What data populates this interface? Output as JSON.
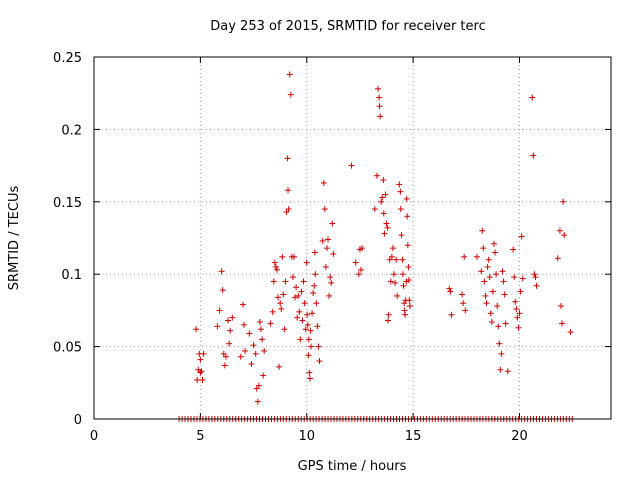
{
  "chart_data": {
    "type": "scatter",
    "title": "Day 253 of 2015, SRMTID for receiver terc",
    "xlabel": "GPS time / hours",
    "ylabel": "SRMTID / TECUs",
    "xlim": [
      0,
      24.3
    ],
    "ylim": [
      0,
      0.25
    ],
    "grid": true,
    "x_ticks": [
      0,
      5,
      10,
      15,
      20
    ],
    "x_tick_labels": [
      "0",
      "5",
      "10",
      "15",
      "20"
    ],
    "y_ticks": [
      0,
      0.05,
      0.1,
      0.15,
      0.2,
      0.25
    ],
    "y_tick_labels": [
      "0",
      "0.05",
      "0.1",
      "0.15",
      "0.2",
      "0.25"
    ],
    "marker": "plus",
    "color": "#cc0000",
    "zero_band": {
      "y": 0,
      "from_x": 4.0,
      "to_x": 22.5
    },
    "series": [
      {
        "name": "SRMTID",
        "points": [
          [
            4.8,
            0.062
          ],
          [
            4.85,
            0.027
          ],
          [
            4.9,
            0.034
          ],
          [
            4.95,
            0.045
          ],
          [
            5.0,
            0.041
          ],
          [
            5.0,
            0.032
          ],
          [
            5.05,
            0.033
          ],
          [
            5.1,
            0.027
          ],
          [
            5.15,
            0.045
          ],
          [
            5.8,
            0.064
          ],
          [
            5.9,
            0.075
          ],
          [
            6.0,
            0.102
          ],
          [
            6.05,
            0.089
          ],
          [
            6.1,
            0.045
          ],
          [
            6.15,
            0.037
          ],
          [
            6.2,
            0.043
          ],
          [
            6.3,
            0.068
          ],
          [
            6.35,
            0.052
          ],
          [
            6.4,
            0.061
          ],
          [
            6.5,
            0.07
          ],
          [
            6.9,
            0.043
          ],
          [
            7.0,
            0.079
          ],
          [
            7.05,
            0.065
          ],
          [
            7.1,
            0.047
          ],
          [
            7.3,
            0.059
          ],
          [
            7.4,
            0.038
          ],
          [
            7.5,
            0.051
          ],
          [
            7.6,
            0.045
          ],
          [
            7.65,
            0.021
          ],
          [
            7.7,
            0.012
          ],
          [
            7.75,
            0.023
          ],
          [
            7.8,
            0.067
          ],
          [
            7.85,
            0.062
          ],
          [
            7.9,
            0.055
          ],
          [
            7.95,
            0.03
          ],
          [
            8.0,
            0.047
          ],
          [
            8.3,
            0.066
          ],
          [
            8.4,
            0.074
          ],
          [
            8.45,
            0.095
          ],
          [
            8.5,
            0.108
          ],
          [
            8.55,
            0.105
          ],
          [
            8.6,
            0.103
          ],
          [
            8.65,
            0.084
          ],
          [
            8.7,
            0.036
          ],
          [
            8.75,
            0.08
          ],
          [
            8.8,
            0.076
          ],
          [
            8.85,
            0.112
          ],
          [
            8.9,
            0.086
          ],
          [
            8.95,
            0.062
          ],
          [
            9.0,
            0.095
          ],
          [
            9.05,
            0.143
          ],
          [
            9.1,
            0.18
          ],
          [
            9.12,
            0.158
          ],
          [
            9.15,
            0.145
          ],
          [
            9.2,
            0.238
          ],
          [
            9.25,
            0.224
          ],
          [
            9.3,
            0.112
          ],
          [
            9.35,
            0.098
          ],
          [
            9.4,
            0.112
          ],
          [
            9.45,
            0.084
          ],
          [
            9.5,
            0.091
          ],
          [
            9.55,
            0.07
          ],
          [
            9.6,
            0.085
          ],
          [
            9.65,
            0.074
          ],
          [
            9.7,
            0.055
          ],
          [
            9.75,
            0.088
          ],
          [
            9.8,
            0.068
          ],
          [
            9.85,
            0.095
          ],
          [
            9.9,
            0.08
          ],
          [
            9.95,
            0.062
          ],
          [
            10.0,
            0.108
          ],
          [
            10.02,
            0.072
          ],
          [
            10.05,
            0.065
          ],
          [
            10.08,
            0.044
          ],
          [
            10.1,
            0.055
          ],
          [
            10.12,
            0.032
          ],
          [
            10.15,
            0.028
          ],
          [
            10.18,
            0.061
          ],
          [
            10.2,
            0.05
          ],
          [
            10.25,
            0.073
          ],
          [
            10.3,
            0.087
          ],
          [
            10.35,
            0.092
          ],
          [
            10.38,
            0.115
          ],
          [
            10.4,
            0.1
          ],
          [
            10.45,
            0.08
          ],
          [
            10.5,
            0.064
          ],
          [
            10.55,
            0.05
          ],
          [
            10.6,
            0.04
          ],
          [
            10.75,
            0.123
          ],
          [
            10.8,
            0.163
          ],
          [
            10.85,
            0.145
          ],
          [
            10.9,
            0.105
          ],
          [
            10.95,
            0.118
          ],
          [
            11.0,
            0.124
          ],
          [
            11.05,
            0.085
          ],
          [
            11.1,
            0.098
          ],
          [
            11.15,
            0.094
          ],
          [
            11.2,
            0.135
          ],
          [
            11.25,
            0.114
          ],
          [
            12.1,
            0.175
          ],
          [
            12.3,
            0.108
          ],
          [
            12.45,
            0.1
          ],
          [
            12.5,
            0.117
          ],
          [
            12.55,
            0.103
          ],
          [
            12.6,
            0.118
          ],
          [
            13.2,
            0.145
          ],
          [
            13.3,
            0.168
          ],
          [
            13.35,
            0.228
          ],
          [
            13.4,
            0.222
          ],
          [
            13.42,
            0.216
          ],
          [
            13.45,
            0.209
          ],
          [
            13.5,
            0.15
          ],
          [
            13.55,
            0.153
          ],
          [
            13.6,
            0.165
          ],
          [
            13.62,
            0.142
          ],
          [
            13.65,
            0.128
          ],
          [
            13.7,
            0.155
          ],
          [
            13.75,
            0.135
          ],
          [
            13.8,
            0.132
          ],
          [
            13.82,
            0.068
          ],
          [
            13.85,
            0.072
          ],
          [
            13.9,
            0.11
          ],
          [
            13.95,
            0.095
          ],
          [
            14.0,
            0.112
          ],
          [
            14.05,
            0.118
          ],
          [
            14.1,
            0.1
          ],
          [
            14.15,
            0.094
          ],
          [
            14.2,
            0.11
          ],
          [
            14.25,
            0.085
          ],
          [
            14.35,
            0.162
          ],
          [
            14.4,
            0.157
          ],
          [
            14.42,
            0.145
          ],
          [
            14.45,
            0.127
          ],
          [
            14.5,
            0.11
          ],
          [
            14.52,
            0.1
          ],
          [
            14.55,
            0.092
          ],
          [
            14.58,
            0.08
          ],
          [
            14.6,
            0.075
          ],
          [
            14.62,
            0.072
          ],
          [
            14.65,
            0.082
          ],
          [
            14.68,
            0.095
          ],
          [
            14.7,
            0.152
          ],
          [
            14.72,
            0.14
          ],
          [
            14.75,
            0.12
          ],
          [
            14.78,
            0.105
          ],
          [
            14.8,
            0.096
          ],
          [
            14.82,
            0.082
          ],
          [
            14.85,
            0.078
          ],
          [
            16.7,
            0.09
          ],
          [
            16.75,
            0.088
          ],
          [
            16.8,
            0.072
          ],
          [
            17.3,
            0.086
          ],
          [
            17.35,
            0.08
          ],
          [
            17.4,
            0.112
          ],
          [
            17.45,
            0.075
          ],
          [
            18.0,
            0.112
          ],
          [
            18.2,
            0.102
          ],
          [
            18.25,
            0.13
          ],
          [
            18.3,
            0.118
          ],
          [
            18.35,
            0.095
          ],
          [
            18.4,
            0.085
          ],
          [
            18.45,
            0.08
          ],
          [
            18.5,
            0.105
          ],
          [
            18.55,
            0.11
          ],
          [
            18.6,
            0.098
          ],
          [
            18.65,
            0.073
          ],
          [
            18.7,
            0.067
          ],
          [
            18.75,
            0.088
          ],
          [
            18.8,
            0.121
          ],
          [
            18.85,
            0.115
          ],
          [
            18.9,
            0.1
          ],
          [
            18.95,
            0.078
          ],
          [
            19.0,
            0.064
          ],
          [
            19.05,
            0.052
          ],
          [
            19.1,
            0.034
          ],
          [
            19.15,
            0.045
          ],
          [
            19.2,
            0.102
          ],
          [
            19.25,
            0.095
          ],
          [
            19.3,
            0.086
          ],
          [
            19.35,
            0.066
          ],
          [
            19.45,
            0.033
          ],
          [
            19.7,
            0.117
          ],
          [
            19.75,
            0.098
          ],
          [
            19.8,
            0.081
          ],
          [
            19.85,
            0.076
          ],
          [
            19.9,
            0.07
          ],
          [
            19.95,
            0.063
          ],
          [
            20.0,
            0.073
          ],
          [
            20.05,
            0.088
          ],
          [
            20.1,
            0.126
          ],
          [
            20.15,
            0.097
          ],
          [
            20.6,
            0.222
          ],
          [
            20.65,
            0.182
          ],
          [
            20.7,
            0.1
          ],
          [
            20.75,
            0.098
          ],
          [
            20.8,
            0.092
          ],
          [
            21.8,
            0.111
          ],
          [
            21.9,
            0.13
          ],
          [
            21.95,
            0.078
          ],
          [
            22.0,
            0.066
          ],
          [
            22.05,
            0.15
          ],
          [
            22.1,
            0.127
          ],
          [
            22.4,
            0.06
          ]
        ]
      }
    ]
  }
}
